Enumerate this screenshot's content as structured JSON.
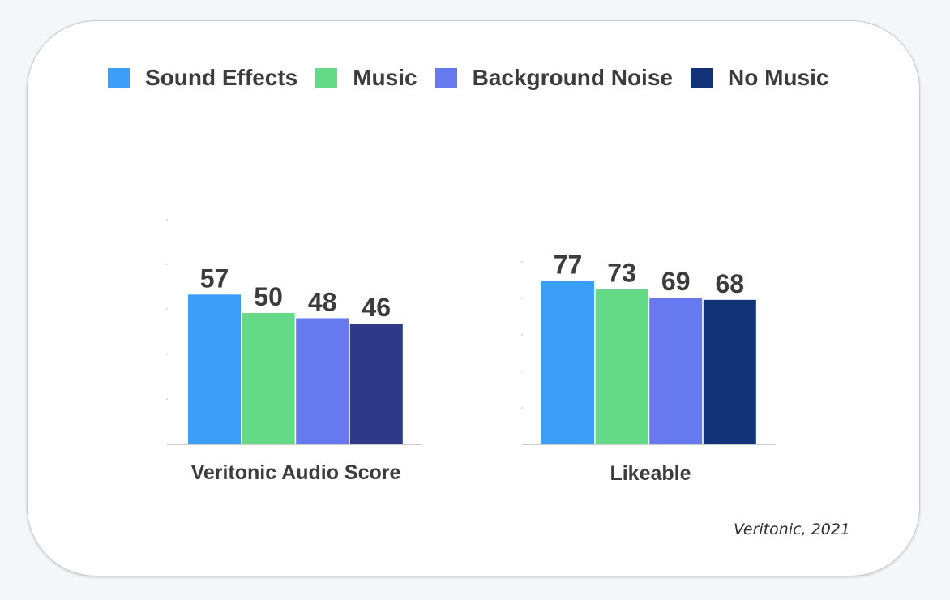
{
  "colors": {
    "background": "#f4f7fa",
    "card": "#ffffff",
    "text": "#3c3c3c",
    "axis": "#9a9a9a"
  },
  "legend": [
    {
      "label": "Sound Effects",
      "color": "#3d9ef7"
    },
    {
      "label": "Music",
      "color": "#64d987"
    },
    {
      "label": "Background Noise",
      "color": "#6679ee"
    },
    {
      "label": "No Music",
      "color": "#123377"
    }
  ],
  "chart_data": {
    "type": "bar",
    "categories": [
      "Veritonic Audio Score",
      "Likeable"
    ],
    "series": [
      {
        "name": "Sound Effects",
        "values": [
          57,
          77
        ],
        "color": "#3d9ef7"
      },
      {
        "name": "Music",
        "values": [
          50,
          73
        ],
        "color": "#64d987"
      },
      {
        "name": "Background Noise",
        "values": [
          48,
          69
        ],
        "color": "#6679ee"
      },
      {
        "name": "No Music",
        "values": [
          46,
          68
        ],
        "color": "#123377"
      }
    ],
    "no_music_alt_color_first_group": "#2e3a88",
    "legend_position": "top",
    "grid": false,
    "title": "",
    "xlabel": "",
    "ylabel": ""
  },
  "source": "Veritonic, 2021"
}
